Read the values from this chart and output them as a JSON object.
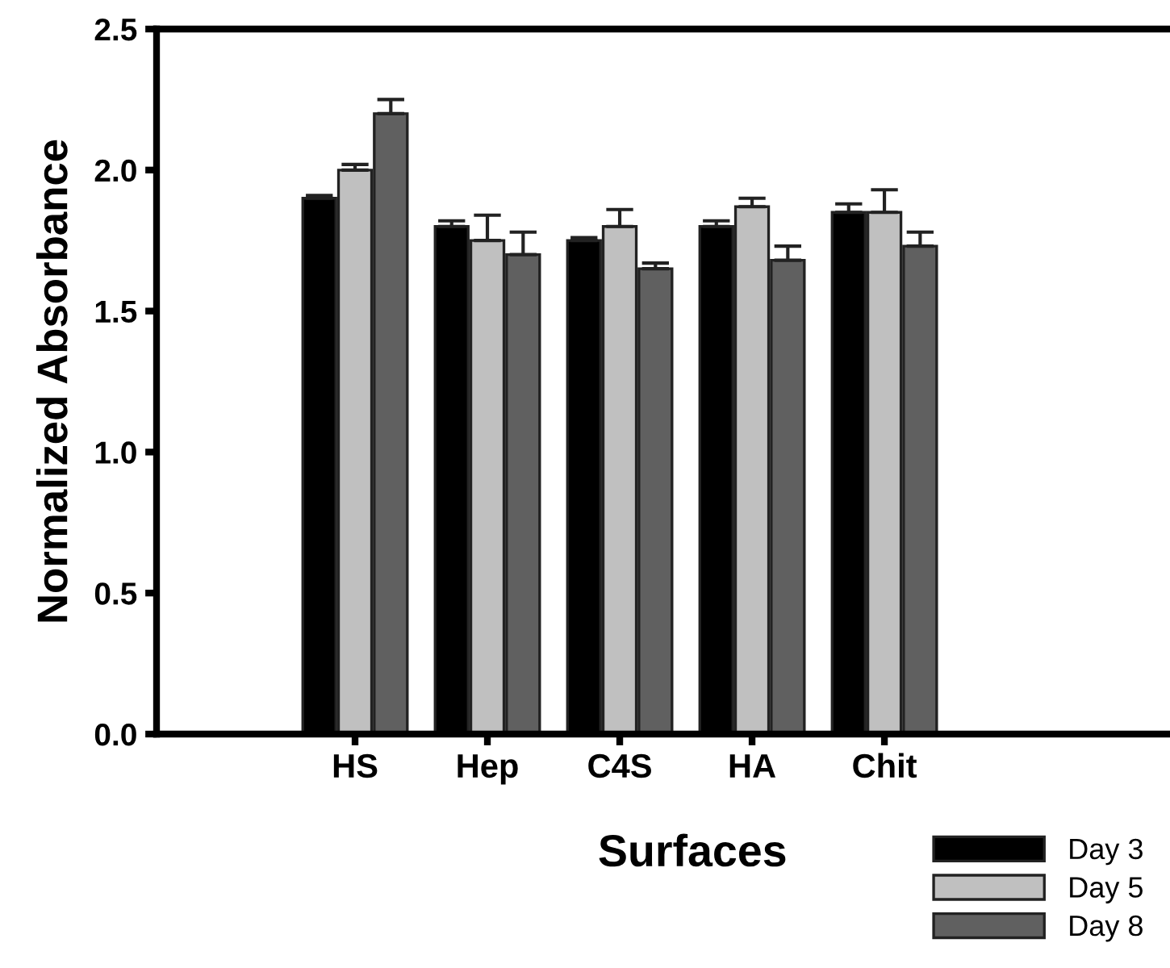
{
  "chart_data": {
    "type": "bar",
    "xlabel": "Surfaces",
    "ylabel": "Normalized Absorbance",
    "categories": [
      "HS",
      "Hep",
      "C4S",
      "HA",
      "Chit"
    ],
    "series": [
      {
        "name": "Day 3",
        "color": "#000000",
        "values": [
          1.9,
          1.8,
          1.75,
          1.8,
          1.85
        ],
        "errors": [
          [
            1.9,
            1.91
          ],
          [
            1.8,
            1.82
          ],
          [
            1.75,
            1.76
          ],
          [
            1.8,
            1.82
          ],
          [
            1.85,
            1.88
          ]
        ]
      },
      {
        "name": "Day 5",
        "color": "#c0c0c0",
        "values": [
          2.0,
          1.75,
          1.8,
          1.87,
          1.85
        ],
        "errors": [
          [
            2.0,
            2.02
          ],
          [
            1.75,
            1.84
          ],
          [
            1.8,
            1.86
          ],
          [
            1.87,
            1.9
          ],
          [
            1.85,
            1.93
          ]
        ]
      },
      {
        "name": "Day 8",
        "color": "#606060",
        "values": [
          2.2,
          1.7,
          1.65,
          1.68,
          1.73
        ],
        "errors": [
          [
            2.2,
            2.25
          ],
          [
            1.7,
            1.78
          ],
          [
            1.65,
            1.67
          ],
          [
            1.68,
            1.73
          ],
          [
            1.73,
            1.78
          ]
        ]
      }
    ],
    "ylim": [
      0,
      2.5
    ],
    "yticks": [
      {
        "value": 0,
        "label": "0.0"
      },
      {
        "value": 0.5,
        "label": "0.5"
      },
      {
        "value": 1,
        "label": "1.0"
      },
      {
        "value": 1.5,
        "label": "1.5"
      },
      {
        "value": 2,
        "label": "2.0"
      },
      {
        "value": 2.5,
        "label": "2.5"
      }
    ],
    "grid": false,
    "legend": "bottom right"
  }
}
